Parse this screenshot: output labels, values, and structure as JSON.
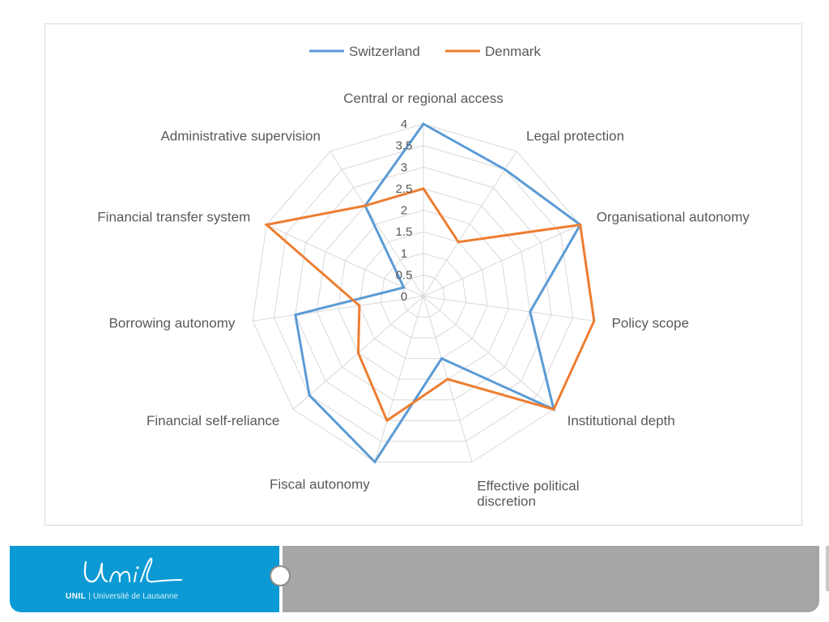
{
  "chart_data": {
    "type": "radar",
    "categories": [
      "Central or regional access",
      "Legal protection",
      "Organisational autonomy",
      "Policy scope",
      "Institutional depth",
      "Effective political discretion",
      "Fiscal autonomy",
      "Financial self-reliance",
      "Borrowing autonomy",
      "Financial transfer system",
      "Administrative supervision"
    ],
    "category_lines": [
      [
        "Central or regional access"
      ],
      [
        "Legal protection"
      ],
      [
        "Organisational autonomy"
      ],
      [
        "Policy scope"
      ],
      [
        "Institutional depth"
      ],
      [
        "Effective political",
        "discretion"
      ],
      [
        "Fiscal autonomy"
      ],
      [
        "Financial self-reliance"
      ],
      [
        "Borrowing autonomy"
      ],
      [
        "Financial transfer system"
      ],
      [
        "Administrative supervision"
      ]
    ],
    "series": [
      {
        "name": "Switzerland",
        "color": "#5b9bd5",
        "values": [
          4,
          3.5,
          4,
          2.5,
          4,
          1.5,
          4,
          3.5,
          3,
          0.5,
          2.5
        ]
      },
      {
        "name": "Denmark",
        "color": "#ed7d31",
        "values": [
          2.5,
          1.5,
          4,
          4,
          4,
          2,
          3,
          2,
          1.5,
          4,
          2.5
        ]
      }
    ],
    "ticks": [
      "0",
      "0.5",
      "1",
      "1.5",
      "2",
      "2.5",
      "3",
      "3.5",
      "4"
    ],
    "rmax": 4,
    "grid_color": "#d9d9d9",
    "legend_position": "top"
  },
  "footer": {
    "logo_script": "Unil",
    "logo_bold": "UNIL",
    "separator": "|",
    "university": "Université de Lausanne",
    "colors": {
      "blue": "#0b9ad4",
      "gray": "#a6a6a6"
    }
  }
}
